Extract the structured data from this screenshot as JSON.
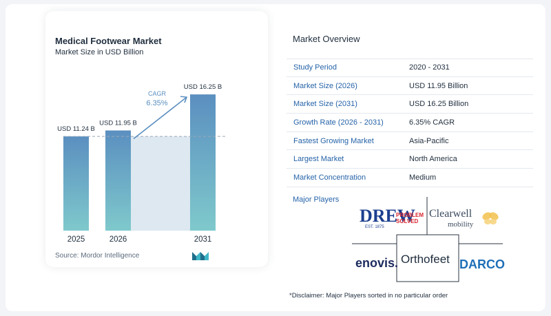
{
  "chart_data": {
    "type": "bar",
    "title": "Medical Footwear Market",
    "subtitle": "Market Size in USD Billion",
    "categories": [
      "2025",
      "2026",
      "2031"
    ],
    "values": [
      11.24,
      11.95,
      16.25
    ],
    "data_labels": [
      "USD 11.24 B",
      "USD 11.95 B",
      "USD 16.25 B"
    ],
    "cagr_label": "CAGR",
    "cagr_value": "6.35%",
    "ylim": [
      0,
      17
    ],
    "colors": {
      "bar_top": "#5b8fc0",
      "bar_bottom": "#7fc9cc",
      "band": "#dde8f1",
      "arrow": "#5b8fc0"
    }
  },
  "source": "Source:  Mordor Intelligence",
  "overview": {
    "title": "Market Overview",
    "rows": [
      {
        "label": "Study Period",
        "value": "2020 - 2031"
      },
      {
        "label": "Market Size (2026)",
        "value": "USD 11.95 Billion"
      },
      {
        "label": "Market Size (2031)",
        "value": "USD 16.25 Billion"
      },
      {
        "label": "Growth Rate (2026 - 2031)",
        "value": "6.35% CAGR"
      },
      {
        "label": "Fastest Growing Market",
        "value": "Asia-Pacific"
      },
      {
        "label": "Largest Market",
        "value": "North America"
      },
      {
        "label": "Market Concentration",
        "value": "Medium"
      }
    ]
  },
  "players": {
    "label": "Major Players",
    "logos": {
      "drew": "DREW",
      "drew_est": "EST. 1875",
      "drew_tag1": "PROBLEM",
      "drew_tag2": "SOLVED",
      "clearwell1": "Clearwell",
      "clearwell2": "mobility",
      "enovis": "enovis.",
      "orthofeet": "Orthofeet",
      "darco": "DARCO"
    }
  },
  "disclaimer": "*Disclaimer: Major Players sorted in no particular order"
}
